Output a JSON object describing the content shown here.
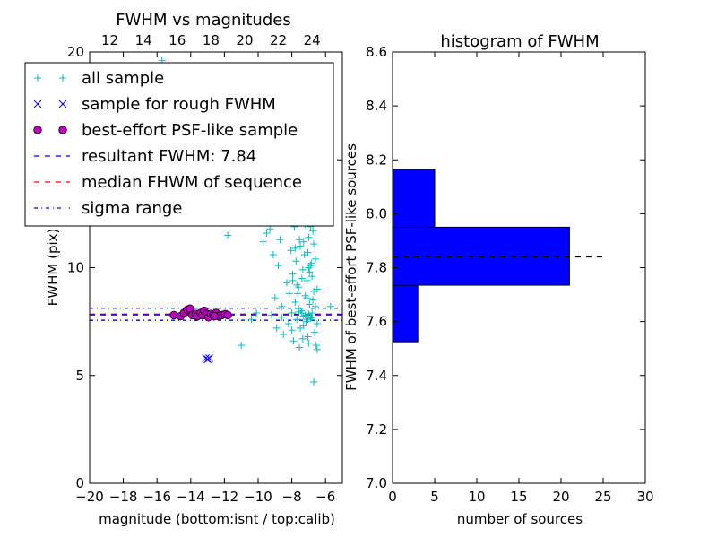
{
  "chart_data": [
    {
      "type": "scatter",
      "title": "FWHM vs magnitudes",
      "xlabel": "magnitude (bottom:isnt / top:calib)",
      "ylabel": "FWHM (pix)",
      "xlim": [
        -20,
        -5
      ],
      "ylim": [
        0,
        20
      ],
      "x_ticks": [
        -20,
        -18,
        -16,
        -14,
        -12,
        -10,
        -8,
        -6
      ],
      "x_tick_labels": [
        "−20",
        "−18",
        "−16",
        "−14",
        "−12",
        "−10",
        "−8",
        "−6"
      ],
      "y_ticks": [
        0,
        5,
        10,
        15,
        20
      ],
      "y_tick_labels": [
        "0",
        "5",
        "10",
        "15",
        "20"
      ],
      "top_axis": {
        "ticks": [
          12,
          14,
          16,
          18,
          20,
          22,
          24
        ],
        "tick_labels": [
          "12",
          "14",
          "16",
          "18",
          "20",
          "22",
          "24"
        ],
        "calib_offset": 30.8
      },
      "grid": false,
      "legend": {
        "placement": "upper-left",
        "entries": [
          {
            "label": "all sample",
            "marker": "plus",
            "color": "#00bfbf"
          },
          {
            "label": "sample for rough FWHM",
            "marker": "x",
            "color": "#0000ff"
          },
          {
            "label": "best-effort PSF-like sample",
            "marker": "circle",
            "color": "#bf00bf"
          },
          {
            "label": "resultant FWHM: 7.84",
            "linestyle": "dashed",
            "color": "#0000ff"
          },
          {
            "label": "median FHWM of sequence",
            "linestyle": "dashed",
            "color": "#ff0000"
          },
          {
            "label": "sigma range",
            "linestyle": "dashdot",
            "color": "#0000ff"
          }
        ]
      },
      "hlines": [
        {
          "y": 7.84,
          "style": "dashed",
          "color": "#0000ff"
        },
        {
          "y": 7.8,
          "style": "dashed",
          "color": "#ff0000"
        },
        {
          "y": 8.12,
          "style": "dashdot",
          "color": "#0000ff"
        },
        {
          "y": 7.56,
          "style": "dashdot",
          "color": "#0000ff"
        }
      ],
      "series": [
        {
          "name": "all sample",
          "marker": "plus",
          "color": "#00bfbf",
          "points": [
            [
              -15.7,
              19.6
            ],
            [
              -12.6,
              7.8
            ],
            [
              -11.8,
              11.5
            ],
            [
              -11.0,
              6.4
            ],
            [
              -10.4,
              7.6
            ],
            [
              -10.1,
              7.9
            ],
            [
              -9.7,
              11.2
            ],
            [
              -9.5,
              11.6
            ],
            [
              -9.3,
              11.8
            ],
            [
              -9.1,
              10.6
            ],
            [
              -9.0,
              8.6
            ],
            [
              -8.9,
              7.2
            ],
            [
              -8.8,
              10.1
            ],
            [
              -8.7,
              11.3
            ],
            [
              -8.6,
              8.2
            ],
            [
              -8.5,
              6.9
            ],
            [
              -8.4,
              12.4
            ],
            [
              -8.3,
              9.3
            ],
            [
              -8.2,
              7.4
            ],
            [
              -8.15,
              8.8
            ],
            [
              -8.1,
              12.8
            ],
            [
              -8.05,
              10.8
            ],
            [
              -8.0,
              7.1
            ],
            [
              -7.95,
              9.7
            ],
            [
              -7.9,
              6.6
            ],
            [
              -7.85,
              11.9
            ],
            [
              -7.8,
              8.4
            ],
            [
              -7.75,
              10.3
            ],
            [
              -7.7,
              7.6
            ],
            [
              -7.65,
              12.2
            ],
            [
              -7.6,
              9.1
            ],
            [
              -7.55,
              6.3
            ],
            [
              -7.5,
              11.0
            ],
            [
              -7.45,
              8.0
            ],
            [
              -7.4,
              12.9
            ],
            [
              -7.35,
              9.9
            ],
            [
              -7.3,
              7.3
            ],
            [
              -7.25,
              10.6
            ],
            [
              -7.2,
              8.7
            ],
            [
              -7.15,
              12.5
            ],
            [
              -7.1,
              9.4
            ],
            [
              -7.05,
              6.8
            ],
            [
              -7.0,
              11.4
            ],
            [
              -6.95,
              8.3
            ],
            [
              -6.9,
              10.1
            ],
            [
              -6.85,
              7.7
            ],
            [
              -6.8,
              9.6
            ],
            [
              -6.75,
              11.7
            ],
            [
              -6.7,
              8.9
            ],
            [
              -6.65,
              7.0
            ],
            [
              -6.6,
              10.4
            ],
            [
              -6.55,
              6.4
            ],
            [
              -6.5,
              9.0
            ],
            [
              -7.3,
              11.2
            ],
            [
              -7.0,
              10.0
            ],
            [
              -7.6,
              8.1
            ],
            [
              -7.2,
              12.0
            ],
            [
              -6.8,
              7.9
            ],
            [
              -7.4,
              9.5
            ],
            [
              -7.1,
              8.6
            ],
            [
              -7.8,
              10.9
            ],
            [
              -7.5,
              7.2
            ],
            [
              -6.9,
              11.9
            ],
            [
              -7.7,
              9.2
            ],
            [
              -7.35,
              6.7
            ],
            [
              -7.05,
              10.7
            ],
            [
              -6.75,
              8.5
            ],
            [
              -7.25,
              12.6
            ],
            [
              -6.95,
              9.8
            ],
            [
              -7.55,
              11.3
            ],
            [
              -6.6,
              8.2
            ],
            [
              -7.15,
              7.5
            ],
            [
              -6.85,
              10.2
            ],
            [
              -7.45,
              12.3
            ],
            [
              -7.65,
              8.8
            ],
            [
              -6.7,
              11.1
            ],
            [
              -7.95,
              9.4
            ],
            [
              -6.5,
              7.4
            ],
            [
              -7.85,
              12.7
            ],
            [
              -7.0,
              6.5
            ],
            [
              -6.7,
              4.7
            ],
            [
              -6.5,
              6.2
            ],
            [
              -5.7,
              8.2
            ],
            [
              -8.0,
              7.9
            ],
            [
              -9.2,
              7.8
            ],
            [
              -8.6,
              7.7
            ],
            [
              -7.0,
              7.85
            ],
            [
              -7.3,
              7.75
            ],
            [
              -6.9,
              7.65
            ],
            [
              -7.6,
              7.95
            ],
            [
              -7.2,
              7.8
            ],
            [
              -6.8,
              7.7
            ],
            [
              -7.4,
              7.9
            ],
            [
              -7.05,
              7.6
            ]
          ]
        },
        {
          "name": "sample for rough FWHM",
          "marker": "x",
          "color": "#0000ff",
          "points": [
            [
              -13.1,
              5.8
            ],
            [
              -13.0,
              5.75
            ],
            [
              -12.9,
              5.8
            ]
          ]
        },
        {
          "name": "best-effort PSF-like sample",
          "marker": "circle",
          "color": "#bf00bf",
          "points": [
            [
              -15.0,
              7.8
            ],
            [
              -14.6,
              7.75
            ],
            [
              -14.4,
              7.9
            ],
            [
              -14.2,
              8.05
            ],
            [
              -14.05,
              8.1
            ],
            [
              -13.9,
              7.8
            ],
            [
              -13.7,
              7.85
            ],
            [
              -13.6,
              7.75
            ],
            [
              -13.4,
              7.9
            ],
            [
              -13.3,
              7.8
            ],
            [
              -13.2,
              8.0
            ],
            [
              -13.05,
              7.85
            ],
            [
              -12.95,
              7.7
            ],
            [
              -12.8,
              7.85
            ],
            [
              -12.65,
              7.8
            ],
            [
              -12.5,
              7.9
            ],
            [
              -12.35,
              7.75
            ],
            [
              -12.15,
              7.8
            ],
            [
              -11.95,
              7.85
            ],
            [
              -11.8,
              7.8
            ],
            [
              -12.6,
              7.75
            ]
          ]
        }
      ]
    },
    {
      "type": "bar",
      "orientation": "horizontal",
      "title": "histogram of FWHM",
      "xlabel": "number of sources",
      "ylabel": "FWHM of best-effort PSF-like sources",
      "xlim": [
        0,
        30
      ],
      "ylim": [
        7.0,
        8.6
      ],
      "x_ticks": [
        0,
        5,
        10,
        15,
        20,
        25,
        30
      ],
      "x_tick_labels": [
        "0",
        "5",
        "10",
        "15",
        "20",
        "25",
        "30"
      ],
      "y_ticks": [
        7.0,
        7.2,
        7.4,
        7.6,
        7.8,
        8.0,
        8.2,
        8.4,
        8.6
      ],
      "y_tick_labels": [
        "7.0",
        "7.2",
        "7.4",
        "7.6",
        "7.8",
        "8.0",
        "8.2",
        "8.4",
        "8.6"
      ],
      "grid": false,
      "bar_color": "#0000ff",
      "bins": [
        {
          "y0": 7.525,
          "y1": 7.735,
          "count": 3
        },
        {
          "y0": 7.735,
          "y1": 7.95,
          "count": 21
        },
        {
          "y0": 7.95,
          "y1": 8.165,
          "count": 5
        }
      ],
      "hline": {
        "y": 7.84,
        "x0": 0,
        "x1": 25.3,
        "style": "dashed",
        "color": "#000000"
      }
    }
  ]
}
